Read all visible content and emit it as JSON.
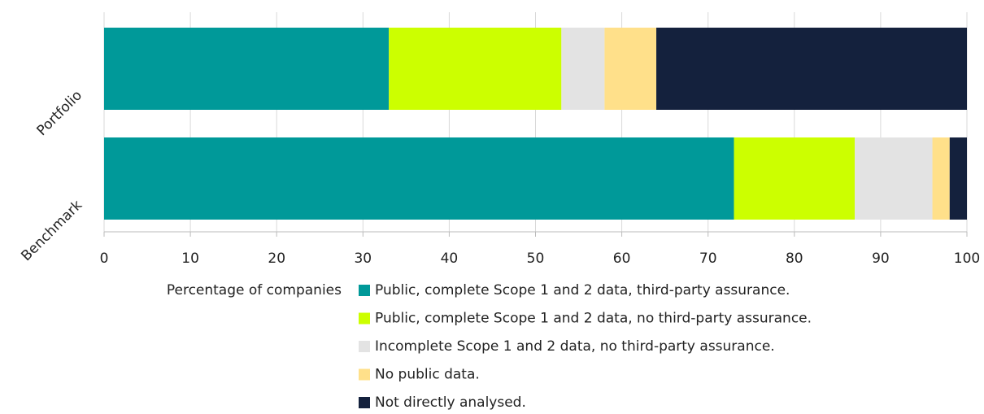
{
  "chart_data": {
    "type": "stacked_barh",
    "xlabel": "Percentage of companies",
    "categories": [
      "Portfolio",
      "Benchmark"
    ],
    "series": [
      {
        "name": "Public, complete Scope 1 and 2 data, third-party assurance.",
        "color": "#009999",
        "values": [
          33,
          73
        ]
      },
      {
        "name": "Public, complete Scope 1 and 2 data, no third-party assurance.",
        "color": "#ccff00",
        "values": [
          20,
          14
        ]
      },
      {
        "name": "Incomplete Scope 1 and 2 data, no third-party assurance.",
        "color": "#e3e3e3",
        "values": [
          5,
          9
        ]
      },
      {
        "name": "No public data.",
        "color": "#ffe08a",
        "values": [
          6,
          2
        ]
      },
      {
        "name": "Not directly analysed.",
        "color": "#14213d",
        "values": [
          36,
          2
        ]
      }
    ],
    "xlim": [
      0,
      100
    ],
    "xticks": [
      0,
      10,
      20,
      30,
      40,
      50,
      60,
      70,
      80,
      90,
      100
    ],
    "grid": true
  }
}
